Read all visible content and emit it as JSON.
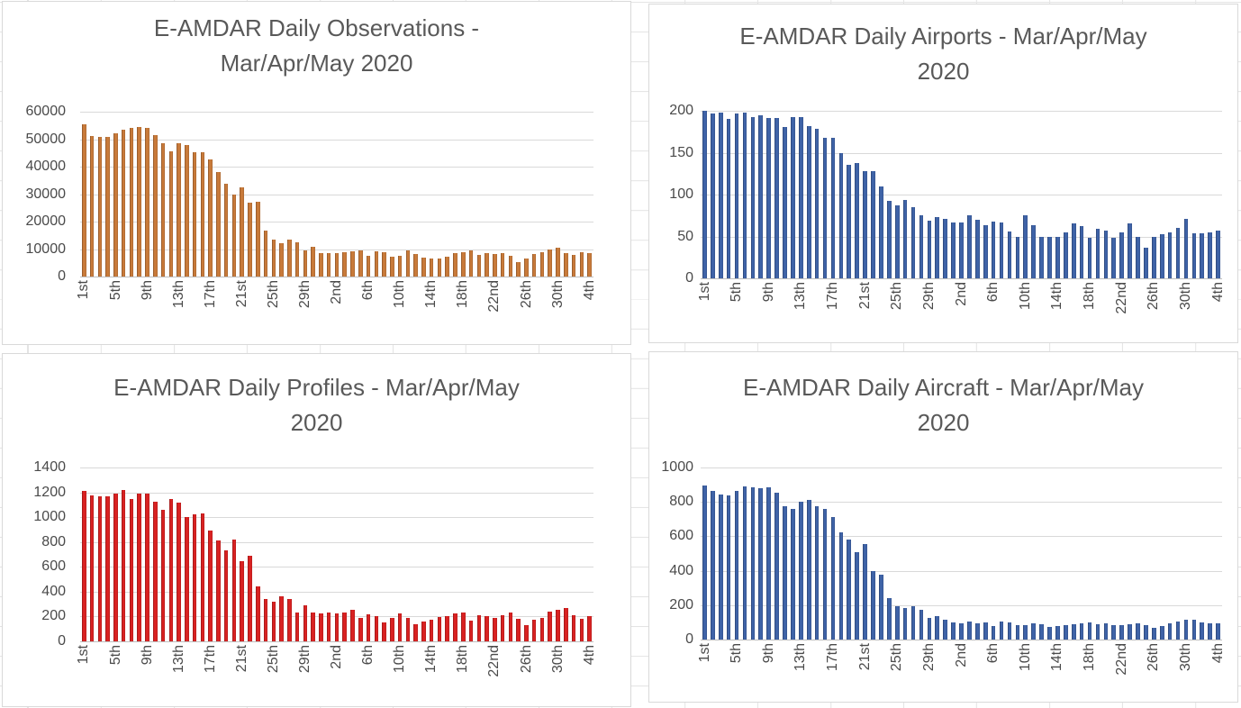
{
  "style": {
    "title_color": "#595959",
    "axis_label_color": "#4a4a4a",
    "gridline_color": "#D9D9D9",
    "axis_line_color": "#BFBFBF",
    "chart_border_color": "#D9D9D9",
    "sheet_grid_color": "#E4E4E4",
    "orange": "#C87A3A",
    "blue": "#3F63A7",
    "red": "#D92222"
  },
  "chart_data": [
    {
      "id": "daily-observations",
      "type": "bar",
      "title_lines": [
        "E-AMDAR Daily Observations -",
        "Mar/Apr/May 2020"
      ],
      "ylim": [
        0,
        60000
      ],
      "y_tick_labels": [
        "60000",
        "50000",
        "40000",
        "30000",
        "20000",
        "10000",
        "0"
      ],
      "x_tick_labels": [
        "1st",
        "5th",
        "9th",
        "13th",
        "17th",
        "21st",
        "25th",
        "29th",
        "2nd",
        "6th",
        "10th",
        "14th",
        "18th",
        "22nd",
        "26th",
        "30th",
        "4th"
      ],
      "x_tick_every": 4,
      "bar_color": "#C87A3A",
      "grid": true,
      "legend": "none",
      "values": [
        55500,
        51200,
        50800,
        51000,
        52000,
        53500,
        54200,
        54300,
        54100,
        51400,
        48700,
        45700,
        48600,
        48000,
        45100,
        45400,
        42700,
        38000,
        33700,
        29800,
        32500,
        27000,
        27100,
        16700,
        13400,
        12100,
        13400,
        12500,
        9600,
        10700,
        8500,
        8600,
        8600,
        8800,
        9300,
        9500,
        7500,
        9300,
        8900,
        7300,
        7700,
        9600,
        8200,
        6800,
        6500,
        6700,
        7300,
        8500,
        8900,
        9600,
        7900,
        8600,
        8300,
        8500,
        7400,
        5100,
        6500,
        8200,
        8900,
        9700,
        10500,
        8500,
        8000,
        8900,
        8600
      ]
    },
    {
      "id": "daily-airports",
      "type": "bar",
      "title_lines": [
        "E-AMDAR Daily Airports - Mar/Apr/May",
        "2020"
      ],
      "ylim": [
        0,
        200
      ],
      "y_tick_labels": [
        "200",
        "150",
        "100",
        "50",
        "0"
      ],
      "x_tick_labels": [
        "1st",
        "5th",
        "9th",
        "13th",
        "17th",
        "21st",
        "25th",
        "29th",
        "2nd",
        "6th",
        "10th",
        "14th",
        "18th",
        "22nd",
        "26th",
        "30th",
        "4th"
      ],
      "x_tick_every": 4,
      "bar_color": "#3F63A7",
      "grid": true,
      "legend": "none",
      "values": [
        200,
        197,
        198,
        190,
        197,
        198,
        193,
        195,
        191,
        191,
        181,
        192,
        192,
        182,
        179,
        168,
        168,
        149,
        136,
        138,
        128,
        128,
        110,
        93,
        87,
        94,
        85,
        75,
        69,
        73,
        71,
        67,
        67,
        75,
        70,
        63,
        68,
        67,
        56,
        49,
        75,
        64,
        49,
        50,
        50,
        55,
        66,
        62,
        48,
        59,
        57,
        48,
        55,
        66,
        50,
        37,
        50,
        53,
        55,
        60,
        71,
        54,
        54,
        55,
        57
      ]
    },
    {
      "id": "daily-profiles",
      "type": "bar",
      "title_lines": [
        "E-AMDAR Daily Profiles - Mar/Apr/May",
        "2020"
      ],
      "ylim": [
        0,
        1400
      ],
      "y_tick_labels": [
        "1400",
        "1200",
        "1000",
        "800",
        "600",
        "400",
        "200",
        "0"
      ],
      "x_tick_labels": [
        "1st",
        "5th",
        "9th",
        "13th",
        "17th",
        "21st",
        "25th",
        "29th",
        "2nd",
        "6th",
        "10th",
        "14th",
        "18th",
        "22nd",
        "26th",
        "30th",
        "4th"
      ],
      "x_tick_every": 4,
      "bar_color": "#D92222",
      "grid": true,
      "legend": "none",
      "values": [
        1215,
        1175,
        1165,
        1170,
        1190,
        1220,
        1150,
        1190,
        1190,
        1125,
        1060,
        1150,
        1120,
        1000,
        1025,
        1030,
        890,
        815,
        730,
        817,
        647,
        693,
        440,
        340,
        317,
        363,
        338,
        234,
        290,
        234,
        225,
        234,
        227,
        234,
        256,
        188,
        220,
        200,
        150,
        188,
        225,
        190,
        135,
        157,
        176,
        195,
        205,
        225,
        232,
        167,
        210,
        200,
        186,
        208,
        234,
        184,
        128,
        176,
        190,
        240,
        253,
        268,
        213,
        185,
        200
      ]
    },
    {
      "id": "daily-aircraft",
      "type": "bar",
      "title_lines": [
        "E-AMDAR Daily Aircraft - Mar/Apr/May",
        "2020"
      ],
      "ylim": [
        0,
        1000
      ],
      "y_tick_labels": [
        "1000",
        "800",
        "600",
        "400",
        "200",
        "0"
      ],
      "x_tick_labels": [
        "1st",
        "5th",
        "9th",
        "13th",
        "17th",
        "21st",
        "25th",
        "29th",
        "2nd",
        "6th",
        "10th",
        "14th",
        "18th",
        "22nd",
        "26th",
        "30th",
        "4th"
      ],
      "x_tick_every": 4,
      "bar_color": "#3F63A7",
      "grid": true,
      "legend": "none",
      "values": [
        895,
        866,
        845,
        836,
        864,
        888,
        883,
        880,
        883,
        852,
        777,
        757,
        802,
        814,
        777,
        762,
        713,
        621,
        579,
        508,
        557,
        397,
        377,
        243,
        193,
        183,
        195,
        174,
        125,
        137,
        113,
        101,
        92,
        103,
        96,
        101,
        80,
        104,
        101,
        83,
        83,
        96,
        87,
        73,
        80,
        83,
        87,
        94,
        101,
        89,
        94,
        85,
        83,
        87,
        92,
        85,
        66,
        80,
        92,
        104,
        118,
        113,
        101,
        96,
        92
      ]
    }
  ]
}
